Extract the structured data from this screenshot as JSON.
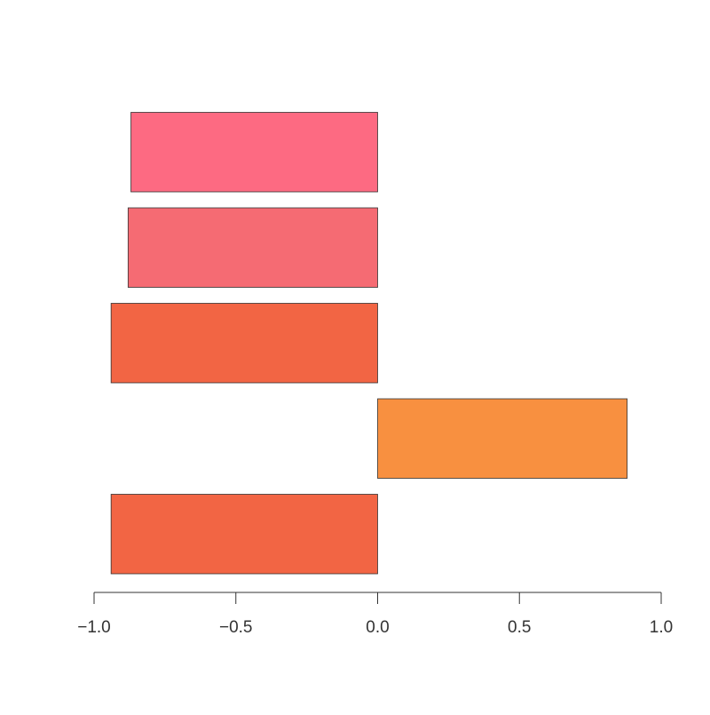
{
  "chart_data": {
    "type": "barh",
    "categories": [
      null,
      null,
      null,
      null,
      null
    ],
    "values": [
      -0.94,
      0.88,
      -0.94,
      -0.88,
      -0.87
    ],
    "colors": [
      "#f26544",
      "#f89040",
      "#f26544",
      "#f56b73",
      "#fd6a82"
    ],
    "xlim": [
      -1,
      1
    ],
    "xticks": [
      {
        "value": -1,
        "label": "−1.0"
      },
      {
        "value": -0.5,
        "label": "−0.5"
      },
      {
        "value": 0,
        "label": "0.0"
      },
      0.5,
      {
        "value": 1,
        "label": "1.0"
      }
    ]
  }
}
